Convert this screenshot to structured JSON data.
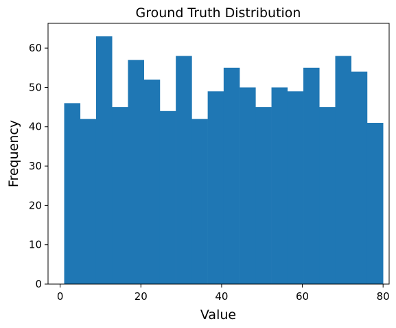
{
  "chart_data": {
    "type": "bar",
    "title": "Ground Truth Distribution",
    "xlabel": "Value",
    "ylabel": "Frequency",
    "bin_edges": [
      1,
      4.95,
      8.9,
      12.85,
      16.8,
      20.75,
      24.7,
      28.65,
      32.6,
      36.55,
      40.5,
      44.45,
      48.4,
      52.35,
      56.3,
      60.25,
      64.2,
      68.15,
      72.1,
      76.05,
      80
    ],
    "values": [
      46,
      42,
      63,
      45,
      57,
      52,
      44,
      58,
      42,
      49,
      55,
      50,
      45,
      50,
      49,
      55,
      45,
      58,
      54,
      41
    ],
    "xlim": [
      -3,
      81.5
    ],
    "ylim": [
      0,
      66.3
    ],
    "xticks": [
      0,
      20,
      40,
      60,
      80
    ],
    "yticks": [
      0,
      10,
      20,
      30,
      40,
      50,
      60
    ],
    "bar_color": "#1f77b4",
    "grid": false
  }
}
